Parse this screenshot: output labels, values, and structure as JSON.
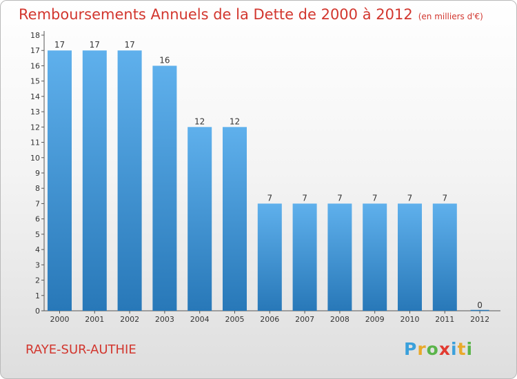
{
  "title": "Remboursements Annuels de la Dette de 2000 à 2012",
  "unit": "(en milliers d'€)",
  "commune": "RAYE-SUR-AUTHIE",
  "logo": {
    "letters": [
      "P",
      "r",
      "o",
      "x",
      "i",
      "t",
      "i"
    ],
    "colors": [
      "#3aa0db",
      "#e9a92a",
      "#5ab44a",
      "#e23a30",
      "#3aa0db",
      "#e9a92a",
      "#5ab44a"
    ]
  },
  "colors": {
    "bar_top": "#5fb0ec",
    "bar_bottom": "#2878b8",
    "title": "#d2362e"
  },
  "chart_data": {
    "type": "bar",
    "categories": [
      "2000",
      "2001",
      "2002",
      "2003",
      "2004",
      "2005",
      "2006",
      "2007",
      "2008",
      "2009",
      "2010",
      "2011",
      "2012"
    ],
    "values": [
      17,
      17,
      17,
      16,
      12,
      12,
      7,
      7,
      7,
      7,
      7,
      7,
      0
    ],
    "data_labels": [
      "17",
      "17",
      "17",
      "16",
      "12",
      "12",
      "7",
      "7",
      "7",
      "7",
      "7",
      "7",
      "0"
    ],
    "yticks": [
      0,
      1,
      2,
      3,
      4,
      5,
      6,
      7,
      8,
      9,
      10,
      11,
      12,
      13,
      14,
      15,
      16,
      17,
      18
    ],
    "ylim": [
      0,
      18
    ],
    "grid": false,
    "legend": "none"
  }
}
